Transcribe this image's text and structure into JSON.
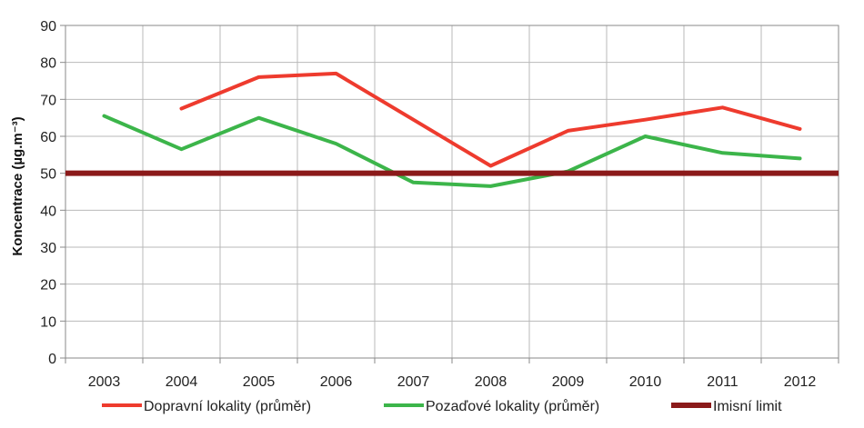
{
  "chart_data": {
    "type": "line",
    "categories": [
      "2003",
      "2004",
      "2005",
      "2006",
      "2007",
      "2008",
      "2009",
      "2010",
      "2011",
      "2012"
    ],
    "ylabel": "Koncentrace (µg.m⁻³)",
    "ylim": [
      0,
      90
    ],
    "yticks": [
      0,
      10,
      20,
      30,
      40,
      50,
      60,
      70,
      80,
      90
    ],
    "grid": true,
    "legend_position": "bottom",
    "series": [
      {
        "name": "Dopravní lokality (průměr)",
        "color": "#ee3b2e",
        "values": [
          null,
          67.5,
          76,
          77,
          64.5,
          52,
          61.5,
          64.5,
          67.8,
          62
        ]
      },
      {
        "name": "Pozaďové lokality (průměr)",
        "color": "#3cb54a",
        "values": [
          65.5,
          56.5,
          65,
          58,
          47.5,
          46.5,
          50.5,
          60,
          55.5,
          54
        ]
      },
      {
        "name": "Imisní limit",
        "color": "#8b1a1a",
        "values": [
          50,
          50,
          50,
          50,
          50,
          50,
          50,
          50,
          50,
          50
        ]
      }
    ]
  }
}
